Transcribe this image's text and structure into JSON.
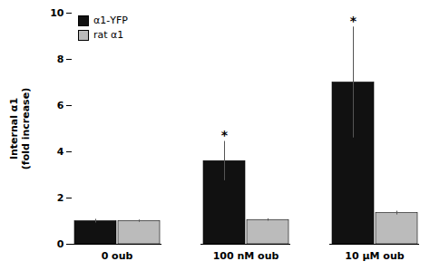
{
  "chart_data": {
    "type": "bar",
    "categories": [
      "0 oub",
      "100 nM oub",
      "10 μM oub"
    ],
    "series": [
      {
        "name": "α1-YFP",
        "color": "#111111",
        "values": [
          1.0,
          3.6,
          7.0
        ],
        "errors": [
          0.08,
          0.85,
          2.4
        ]
      },
      {
        "name": "rat α1",
        "color": "#bbbbbb",
        "values": [
          1.0,
          1.05,
          1.35
        ],
        "errors": [
          0.05,
          0.05,
          0.08
        ]
      }
    ],
    "ylabel": "Internal α1\n(fold increase)",
    "ylim": [
      0,
      10
    ],
    "yticks": [
      0,
      2,
      4,
      6,
      8,
      10
    ],
    "legend": "upper left",
    "annotations": [
      {
        "text": "*",
        "category": "100 nM oub",
        "series": "α1-YFP"
      },
      {
        "text": "*",
        "category": "10 μM oub",
        "series": "α1-YFP"
      }
    ]
  }
}
